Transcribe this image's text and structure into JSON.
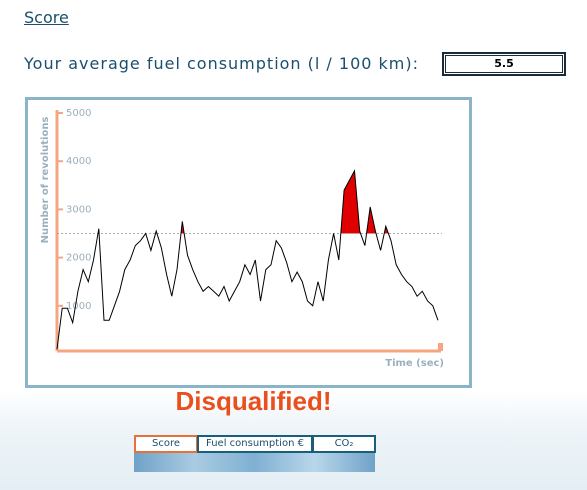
{
  "header": {
    "title": "Score"
  },
  "fuel": {
    "label": "Your average fuel consumption (l / 100 km):",
    "value": "5.5"
  },
  "chart_data": {
    "type": "line",
    "ylabel": "Number of revolutions",
    "xlabel": "Time (sec)",
    "ylim": [
      0,
      5000
    ],
    "yticks": [
      1000,
      2000,
      3000,
      4000,
      5000
    ],
    "threshold": 2500,
    "color": "#000000",
    "threshold_color": "#aaaaaa",
    "over_color": "#e00000",
    "values": [
      100,
      950,
      950,
      650,
      1300,
      1750,
      1500,
      1950,
      2600,
      700,
      700,
      1000,
      1300,
      1750,
      1950,
      2250,
      2350,
      2500,
      2150,
      2550,
      2200,
      1650,
      1200,
      1750,
      2750,
      2050,
      1750,
      1500,
      1300,
      1400,
      1300,
      1200,
      1400,
      1100,
      1300,
      1500,
      1850,
      1650,
      1950,
      1100,
      1750,
      1850,
      2350,
      2200,
      1900,
      1500,
      1700,
      1500,
      1100,
      1000,
      1500,
      1100,
      1950,
      2500,
      1950,
      3400,
      3600,
      3800,
      2550,
      2250,
      3050,
      2550,
      2150,
      2650,
      2350,
      1850,
      1650,
      1500,
      1400,
      1200,
      1300,
      1100,
      1000,
      700
    ]
  },
  "status": "Disqualified!",
  "tabs": [
    "Score",
    "Fuel consumption €",
    "CO₂"
  ]
}
